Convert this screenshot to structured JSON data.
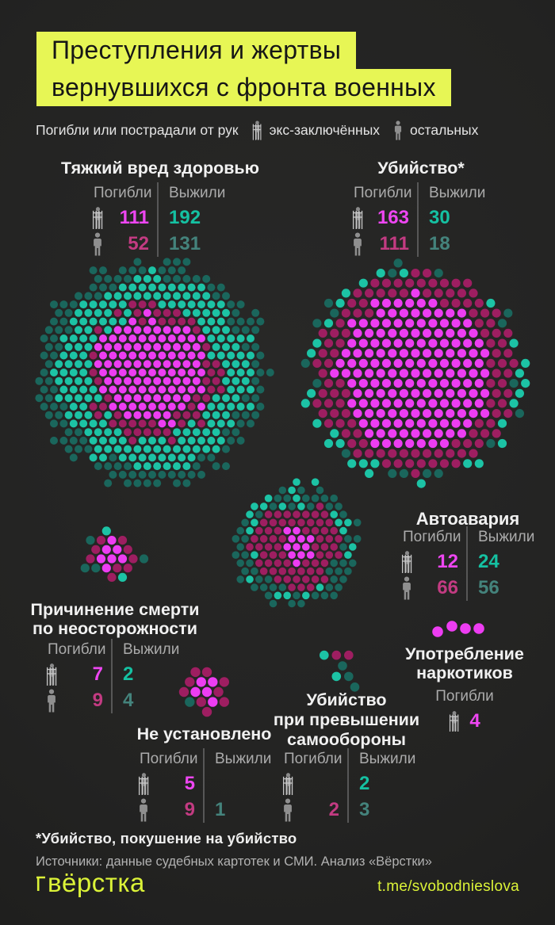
{
  "colors": {
    "background": "#232322",
    "accent_yellow": "#e7f655",
    "accent_yellow_text": "#dcf338",
    "magenta_bright": "#ed3df2",
    "magenta_dark": "#9e1e61",
    "teal_bright": "#1cc3a5",
    "teal_dark": "#1a665c",
    "num_magenta": "#ee46f2",
    "num_crimson": "#c33b82",
    "num_teal": "#15c1a2",
    "num_teal_muted": "#44837c"
  },
  "title": {
    "line1": "Преступления и жертвы",
    "line2": "вернувшихся с фронта военных"
  },
  "legend": {
    "prefix": "Погибли или пострадали от рук",
    "ex_label": "экс-заключённых",
    "others_label": "остальных"
  },
  "col_labels": {
    "died": "Погибли",
    "survived": "Выжили"
  },
  "sections": {
    "grievous": {
      "title": "Тяжкий вред здоровью",
      "ex_died": "111",
      "ex_survived": "192",
      "other_died": "52",
      "other_survived": "131"
    },
    "murder": {
      "title": "Убийство*",
      "ex_died": "163",
      "ex_survived": "30",
      "other_died": "111",
      "other_survived": "18"
    },
    "car": {
      "title": "Автоавария",
      "ex_died": "12",
      "ex_survived": "24",
      "other_died": "66",
      "other_survived": "56"
    },
    "negligence": {
      "title_l1": "Причинение смерти",
      "title_l2": "по неосторожности",
      "ex_died": "7",
      "ex_survived": "2",
      "other_died": "9",
      "other_survived": "4"
    },
    "unknown": {
      "title": "Не установлено",
      "ex_died": "5",
      "ex_survived": "",
      "other_died": "9",
      "other_survived": "1"
    },
    "selfdefense": {
      "title_l1": "Убийство",
      "title_l2": "при превышении",
      "title_l3": "самообороны",
      "ex_died": "",
      "ex_survived": "2",
      "other_died": "2",
      "other_survived": "3"
    },
    "drugs": {
      "title_l1": "Употребление",
      "title_l2": "наркотиков",
      "ex_died": "4"
    }
  },
  "footer": {
    "note": "*Убийство, покушение на убийство",
    "sources": "Источники: данные судебных картотек и СМИ. Анализ «Вёрстки»",
    "logo": "вёрстка",
    "link": "t.me/svobodnieslova"
  },
  "chart_data": {
    "type": "scatter",
    "note": "dot-matrix infographic: каждая точка = один человек",
    "title": "Преступления и жертвы вернувшихся с фронта военных",
    "categories": [
      "Тяжкий вред здоровью",
      "Убийство*",
      "Автоавария",
      "Причинение смерти по неосторожности",
      "Не установлено",
      "Убийство при превышении самообороны",
      "Употребление наркотиков"
    ],
    "series": [
      {
        "name": "Погибли от рук экс-заключённых",
        "color": "#ed3df2",
        "values": [
          111,
          163,
          12,
          7,
          5,
          null,
          4
        ]
      },
      {
        "name": "Выжили (от рук экс-заключённых)",
        "color": "#1cc3a5",
        "values": [
          192,
          30,
          24,
          2,
          null,
          2,
          null
        ]
      },
      {
        "name": "Погибли от рук остальных",
        "color": "#9e1e61",
        "values": [
          52,
          111,
          66,
          9,
          9,
          2,
          null
        ]
      },
      {
        "name": "Выжили (от рук остальных)",
        "color": "#1a665c",
        "values": [
          131,
          18,
          56,
          4,
          1,
          3,
          null
        ]
      }
    ],
    "legend": [
      "экс-заключённых",
      "остальных"
    ],
    "legend_position": "top"
  }
}
